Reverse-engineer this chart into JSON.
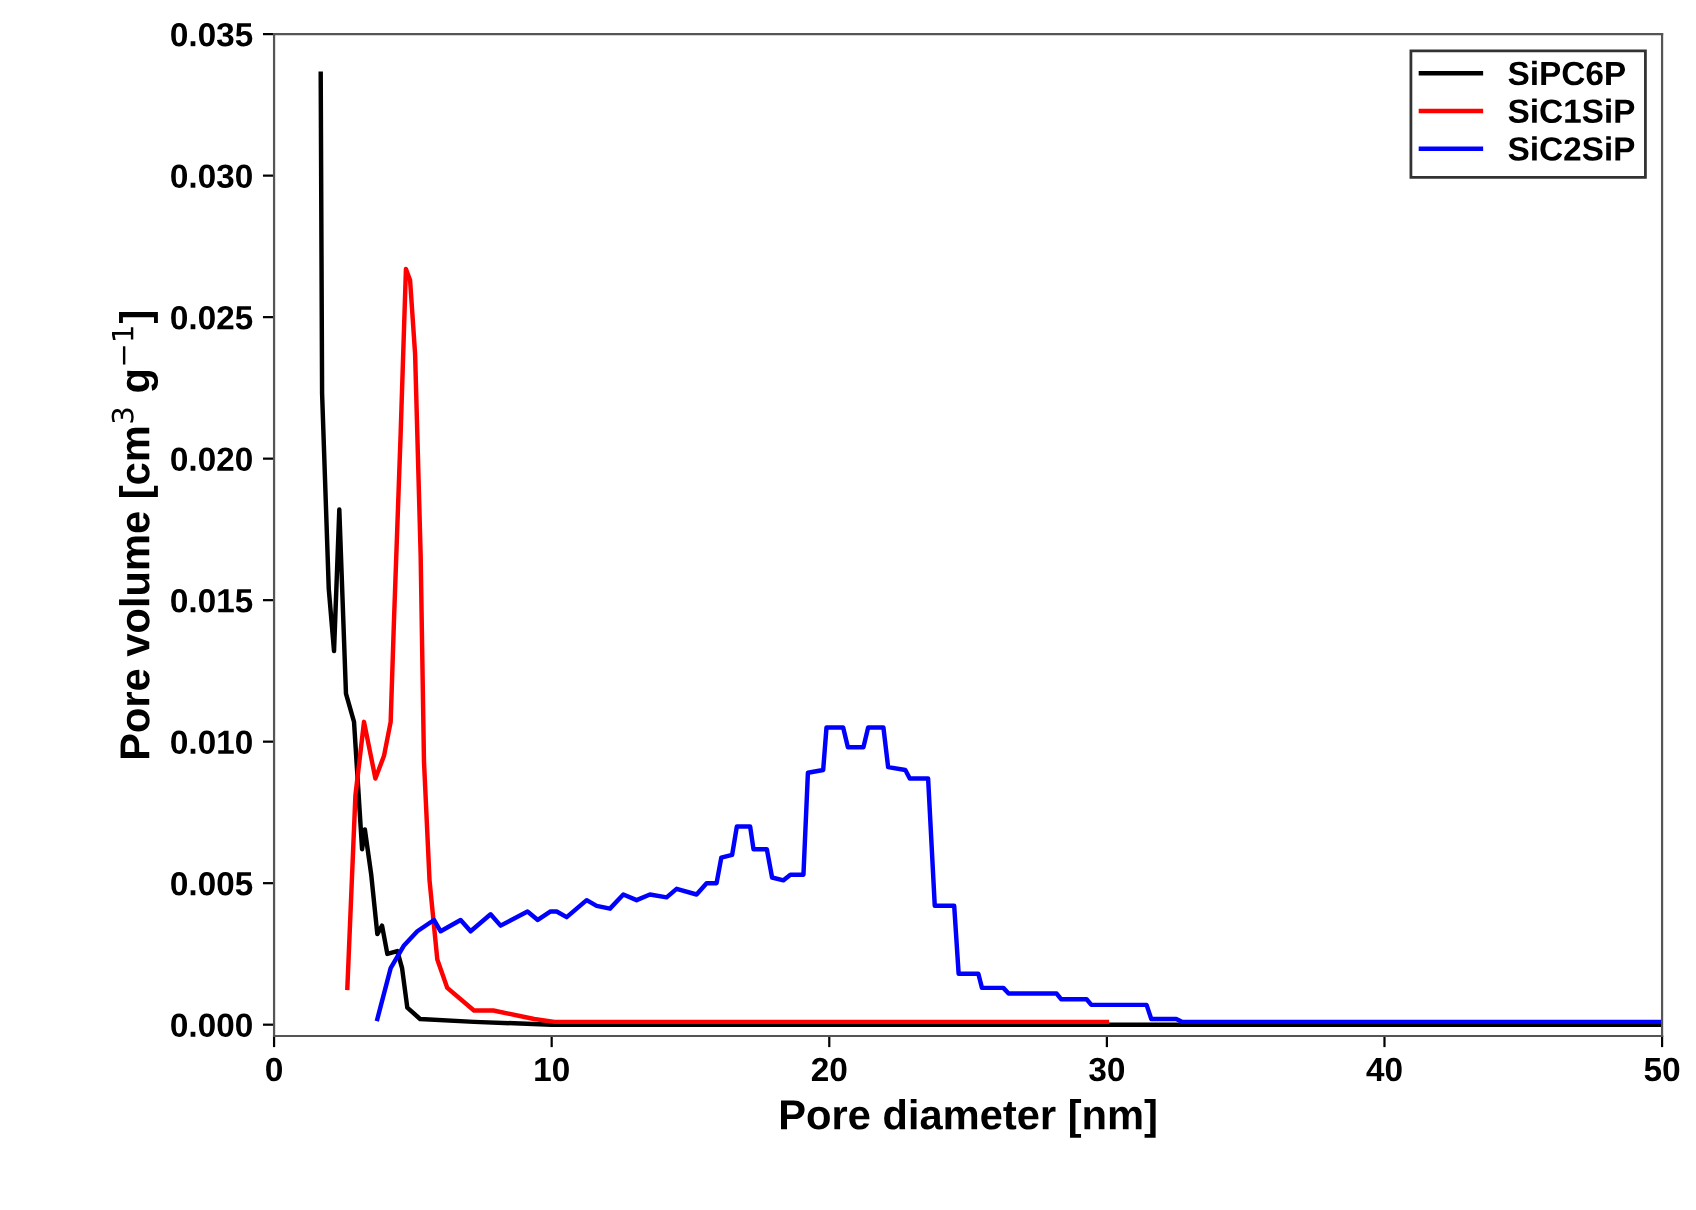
{
  "chart_data": {
    "type": "line",
    "xlabel": "Pore diameter [nm]",
    "ylabel": "Pore volume [cm$^{3}$ g$^{−1}$]",
    "xlim": [
      0,
      50
    ],
    "ylim": [
      -0.0004,
      0.035
    ],
    "xticks": [
      0,
      10,
      20,
      30,
      40,
      50
    ],
    "yticks": [
      {
        "value": 0,
        "label": "0.000"
      },
      {
        "value": 0.005,
        "label": "0.005"
      },
      {
        "value": 0.01,
        "label": "0.010"
      },
      {
        "value": 0.015,
        "label": "0.015"
      },
      {
        "value": 0.02,
        "label": "0.020"
      },
      {
        "value": 0.025,
        "label": "0.025"
      },
      {
        "value": 0.03,
        "label": "0.030"
      },
      {
        "value": 0.035,
        "label": "0.035"
      }
    ],
    "grid": false,
    "legend": "top right",
    "line_style": "solid",
    "marker": "none",
    "series": [
      {
        "name": "SiPC6P",
        "color": "#000000",
        "x": [
          1.68,
          1.73,
          1.97,
          2.16,
          2.35,
          2.59,
          2.88,
          3.17,
          3.27,
          3.5,
          3.72,
          3.89,
          4.08,
          4.44,
          4.61,
          4.8,
          5.26,
          7.2,
          10,
          20,
          30,
          40,
          50
        ],
        "values": [
          0.0336,
          0.0223,
          0.0154,
          0.0132,
          0.0182,
          0.0117,
          0.0107,
          0.0062,
          0.0069,
          0.0053,
          0.0032,
          0.0035,
          0.0025,
          0.0026,
          0.002,
          0.0006,
          0.0002,
          0.0001,
          0,
          0,
          0,
          0,
          0
        ]
      },
      {
        "name": "SiC1SiP",
        "color": "#ff0000",
        "x": [
          2.64,
          2.93,
          3.24,
          3.65,
          3.96,
          4.2,
          4.32,
          4.56,
          4.75,
          4.9,
          5.08,
          5.28,
          5.4,
          5.6,
          5.88,
          6.24,
          7.2,
          7.9,
          9.37,
          10.1,
          15,
          20,
          25,
          30
        ],
        "values": [
          0.0013,
          0.0081,
          0.0107,
          0.0087,
          0.0095,
          0.0107,
          0.0143,
          0.0209,
          0.0267,
          0.0263,
          0.0237,
          0.0166,
          0.0093,
          0.0051,
          0.0023,
          0.0013,
          0.0005,
          0.0005,
          0.0002,
          0.0001,
          0.0001,
          0.0001,
          0.0001,
          0.0001
        ]
      },
      {
        "name": "SiC2SiP",
        "color": "#0000ff",
        "x": [
          3.72,
          4.2,
          4.68,
          5.16,
          5.76,
          6.0,
          6.72,
          7.08,
          7.8,
          8.16,
          9.13,
          9.5,
          9.96,
          10.18,
          10.54,
          10.9,
          11.26,
          11.62,
          12.1,
          12.58,
          13.06,
          13.54,
          14.14,
          14.5,
          15.22,
          15.58,
          15.94,
          16.11,
          16.5,
          16.67,
          17.15,
          17.27,
          17.75,
          17.94,
          18.35,
          18.6,
          19.07,
          19.23,
          19.78,
          19.9,
          20.5,
          20.67,
          21.23,
          21.4,
          21.95,
          22.12,
          22.74,
          22.9,
          23.56,
          23.8,
          24.5,
          24.66,
          25.37,
          25.5,
          26.27,
          26.46,
          28.19,
          28.35,
          29.27,
          29.44,
          31.43,
          31.6,
          32.5,
          32.7,
          40,
          45,
          50
        ],
        "values": [
          0.0002,
          0.002,
          0.0028,
          0.0033,
          0.0037,
          0.0033,
          0.0037,
          0.0033,
          0.0039,
          0.0035,
          0.004,
          0.0037,
          0.004,
          0.004,
          0.0038,
          0.0041,
          0.0044,
          0.0042,
          0.0041,
          0.0046,
          0.0044,
          0.0046,
          0.0045,
          0.0048,
          0.0046,
          0.005,
          0.005,
          0.0059,
          0.006,
          0.007,
          0.007,
          0.0062,
          0.0062,
          0.0052,
          0.0051,
          0.0053,
          0.0053,
          0.0089,
          0.009,
          0.0105,
          0.0105,
          0.0098,
          0.0098,
          0.0105,
          0.0105,
          0.0091,
          0.009,
          0.0087,
          0.0087,
          0.0042,
          0.0042,
          0.0018,
          0.0018,
          0.0013,
          0.0013,
          0.0011,
          0.0011,
          0.0009,
          0.0009,
          0.0007,
          0.0007,
          0.0002,
          0.0002,
          0.0001,
          0.0001,
          0.0001,
          0.0001
        ]
      }
    ]
  }
}
